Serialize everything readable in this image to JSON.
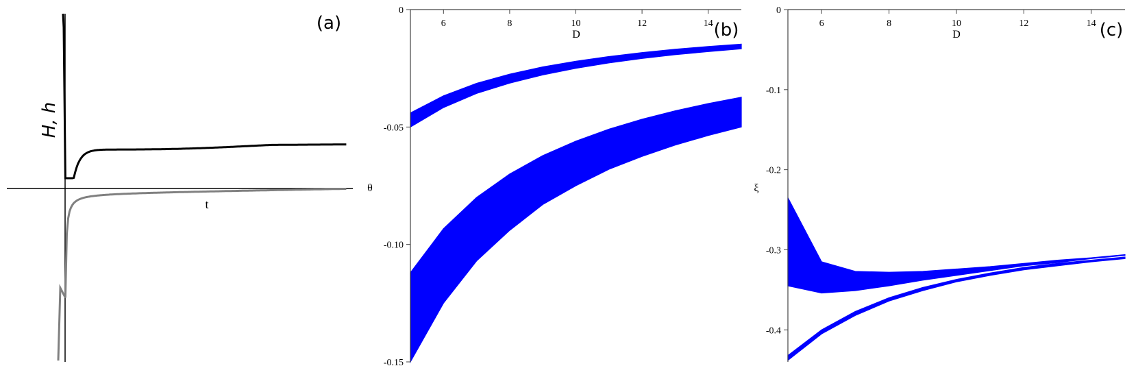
{
  "chart_data": [
    {
      "panel_label": "(a)",
      "type": "line",
      "ylabel": "H, h",
      "xlabel": "t",
      "series": [
        {
          "color": "#000000",
          "shape": "decaying curve from a pole at t=0 to a positive plateau"
        },
        {
          "color": "#808080",
          "shape": "rising curve from a negative pole at t=0 toward zero"
        }
      ]
    },
    {
      "panel_label": "(b)",
      "type": "area",
      "xlabel": "D",
      "ylabel": "θ",
      "xlim": [
        5.0,
        15.0
      ],
      "ylim": [
        -0.15,
        0
      ],
      "x_ticks": [
        "6",
        "8",
        "10",
        "12",
        "14"
      ],
      "y_ticks": [
        "0",
        "-0.05",
        "-0.10",
        "-0.15"
      ],
      "fill_color": "#0000ff",
      "x": [
        5,
        6,
        7,
        8,
        9,
        10,
        11,
        12,
        13,
        14,
        15
      ],
      "series": [
        {
          "lower": [
            -0.05,
            -0.0417,
            -0.0357,
            -0.0313,
            -0.0278,
            -0.025,
            -0.0227,
            -0.0208,
            -0.0192,
            -0.0179,
            -0.0167
          ],
          "upper": [
            -0.044,
            -0.0367,
            -0.0314,
            -0.0275,
            -0.0244,
            -0.022,
            -0.02,
            -0.0183,
            -0.0169,
            -0.0157,
            -0.0147
          ]
        },
        {
          "lower": [
            -0.15,
            -0.125,
            -0.107,
            -0.094,
            -0.083,
            -0.075,
            -0.068,
            -0.0625,
            -0.0577,
            -0.0536,
            -0.05
          ],
          "upper": [
            -0.112,
            -0.0933,
            -0.08,
            -0.07,
            -0.0622,
            -0.056,
            -0.0509,
            -0.0467,
            -0.0431,
            -0.04,
            -0.0373
          ]
        }
      ]
    },
    {
      "panel_label": "(c)",
      "type": "area",
      "xlabel": "D",
      "ylabel": "ξ",
      "xlim": [
        5.0,
        15.0
      ],
      "ylim": [
        -0.44,
        0
      ],
      "x_ticks": [
        "6",
        "8",
        "10",
        "12",
        "14"
      ],
      "y_ticks": [
        "0",
        "-0.1",
        "-0.2",
        "-0.3",
        "-0.4"
      ],
      "fill_color": "#0000ff",
      "x": [
        5,
        6,
        7,
        8,
        9,
        10,
        11,
        12,
        13,
        14,
        15
      ],
      "series": [
        {
          "lower": [
            -0.345,
            -0.354,
            -0.351,
            -0.345,
            -0.338,
            -0.332,
            -0.326,
            -0.32,
            -0.316,
            -0.311,
            -0.307
          ],
          "upper": [
            -0.235,
            -0.315,
            -0.327,
            -0.328,
            -0.327,
            -0.324,
            -0.321,
            -0.317,
            -0.313,
            -0.31,
            -0.306
          ]
        },
        {
          "lower": [
            -0.438,
            -0.405,
            -0.382,
            -0.364,
            -0.351,
            -0.34,
            -0.332,
            -0.325,
            -0.32,
            -0.315,
            -0.311
          ],
          "upper": [
            -0.432,
            -0.4,
            -0.377,
            -0.36,
            -0.347,
            -0.337,
            -0.329,
            -0.322,
            -0.317,
            -0.313,
            -0.309
          ]
        }
      ]
    }
  ]
}
